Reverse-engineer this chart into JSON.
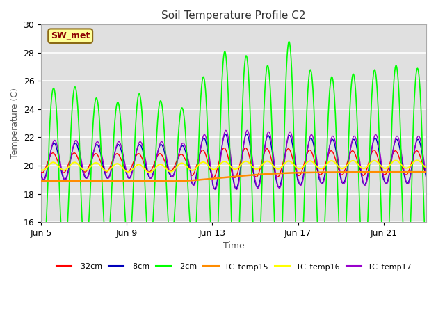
{
  "title": "Soil Temperature Profile C2",
  "xlabel": "Time",
  "ylabel": "Temperature (C)",
  "ylim": [
    16,
    30
  ],
  "yticks": [
    16,
    18,
    20,
    22,
    24,
    26,
    28,
    30
  ],
  "xtick_labels": [
    "Jun 5",
    "Jun 9",
    "Jun 13",
    "Jun 17",
    "Jun 21"
  ],
  "annotation_text": "SW_met",
  "annotation_color": "#8B0000",
  "annotation_bg": "#FFFF99",
  "annotation_border": "#8B6914",
  "line_colors": {
    "tc32": "#FF0000",
    "tc8": "#0000BB",
    "tc2": "#00FF00",
    "temp15": "#FF8C00",
    "temp16": "#FFFF00",
    "temp17": "#9900CC"
  },
  "legend_labels": [
    "-32cm",
    "-8cm",
    "-2cm",
    "TC_temp15",
    "TC_temp16",
    "TC_temp17"
  ],
  "n_days": 18,
  "hours_per_day": 24
}
